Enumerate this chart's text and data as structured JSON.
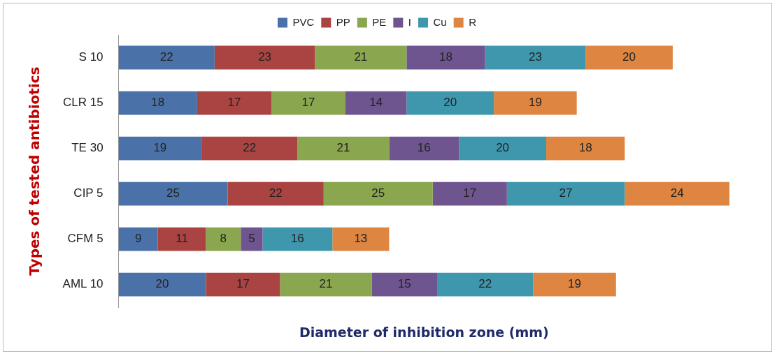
{
  "chart_data": {
    "type": "bar",
    "orientation": "horizontal",
    "stacked": true,
    "xlabel": "Diameter of inhibition zone (mm)",
    "ylabel": "Types of tested antibiotics",
    "categories": [
      "S 10",
      "CLR 15",
      "TE 30",
      "CIP 5",
      "CFM 5",
      "AML 10"
    ],
    "series": [
      {
        "name": "PVC",
        "color": "#4a72a8",
        "values": [
          22,
          18,
          19,
          25,
          9,
          20
        ]
      },
      {
        "name": "PP",
        "color": "#a94442",
        "values": [
          23,
          17,
          22,
          22,
          11,
          17
        ]
      },
      {
        "name": "PE",
        "color": "#8aa64e",
        "values": [
          21,
          17,
          21,
          25,
          8,
          21
        ]
      },
      {
        "name": "I",
        "color": "#6f5590",
        "values": [
          18,
          14,
          16,
          17,
          5,
          15
        ]
      },
      {
        "name": "Cu",
        "color": "#3f97ae",
        "values": [
          23,
          20,
          20,
          27,
          16,
          22
        ]
      },
      {
        "name": "R",
        "color": "#de8541",
        "values": [
          20,
          19,
          18,
          24,
          13,
          19
        ]
      }
    ],
    "data_labels": true,
    "legend": "top",
    "grid": false,
    "tick_labels": "y"
  }
}
